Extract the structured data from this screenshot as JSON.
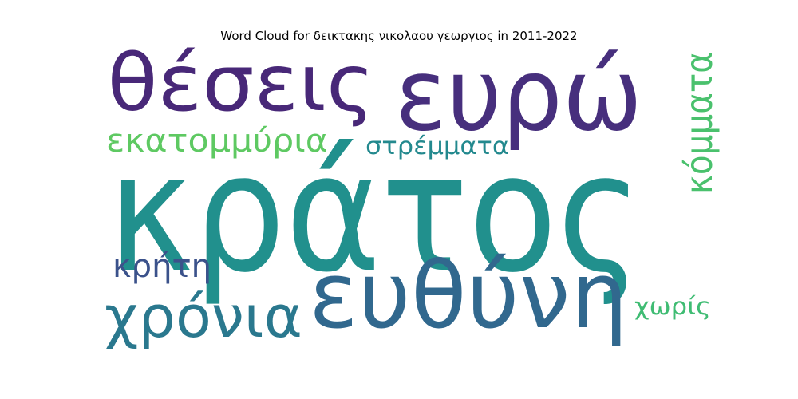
{
  "chart_data": {
    "type": "wordcloud",
    "title": "Word Cloud for δεικτακης νικολαου γεωργιος in 2011-2022",
    "words": [
      {
        "text": "κράτος",
        "weight": 1.0,
        "color": "#21908d",
        "orientation": "horizontal"
      },
      {
        "text": "ευρώ",
        "weight": 0.62,
        "color": "#472f7d",
        "orientation": "horizontal"
      },
      {
        "text": "ευθύνη",
        "weight": 0.58,
        "color": "#31688e",
        "orientation": "horizontal"
      },
      {
        "text": "θέσεις",
        "weight": 0.42,
        "color": "#482878",
        "orientation": "horizontal"
      },
      {
        "text": "χρόνια",
        "weight": 0.3,
        "color": "#2a788e",
        "orientation": "horizontal"
      },
      {
        "text": "εκατομμύρια",
        "weight": 0.18,
        "color": "#5ec962",
        "orientation": "horizontal"
      },
      {
        "text": "κόμματα",
        "weight": 0.2,
        "color": "#4ac16d",
        "orientation": "vertical"
      },
      {
        "text": "κρήτη",
        "weight": 0.16,
        "color": "#3b528b",
        "orientation": "horizontal"
      },
      {
        "text": "στρέμματα",
        "weight": 0.13,
        "color": "#23898e",
        "orientation": "horizontal"
      },
      {
        "text": "χωρίς",
        "weight": 0.1,
        "color": "#3fbc73",
        "orientation": "horizontal"
      }
    ]
  }
}
